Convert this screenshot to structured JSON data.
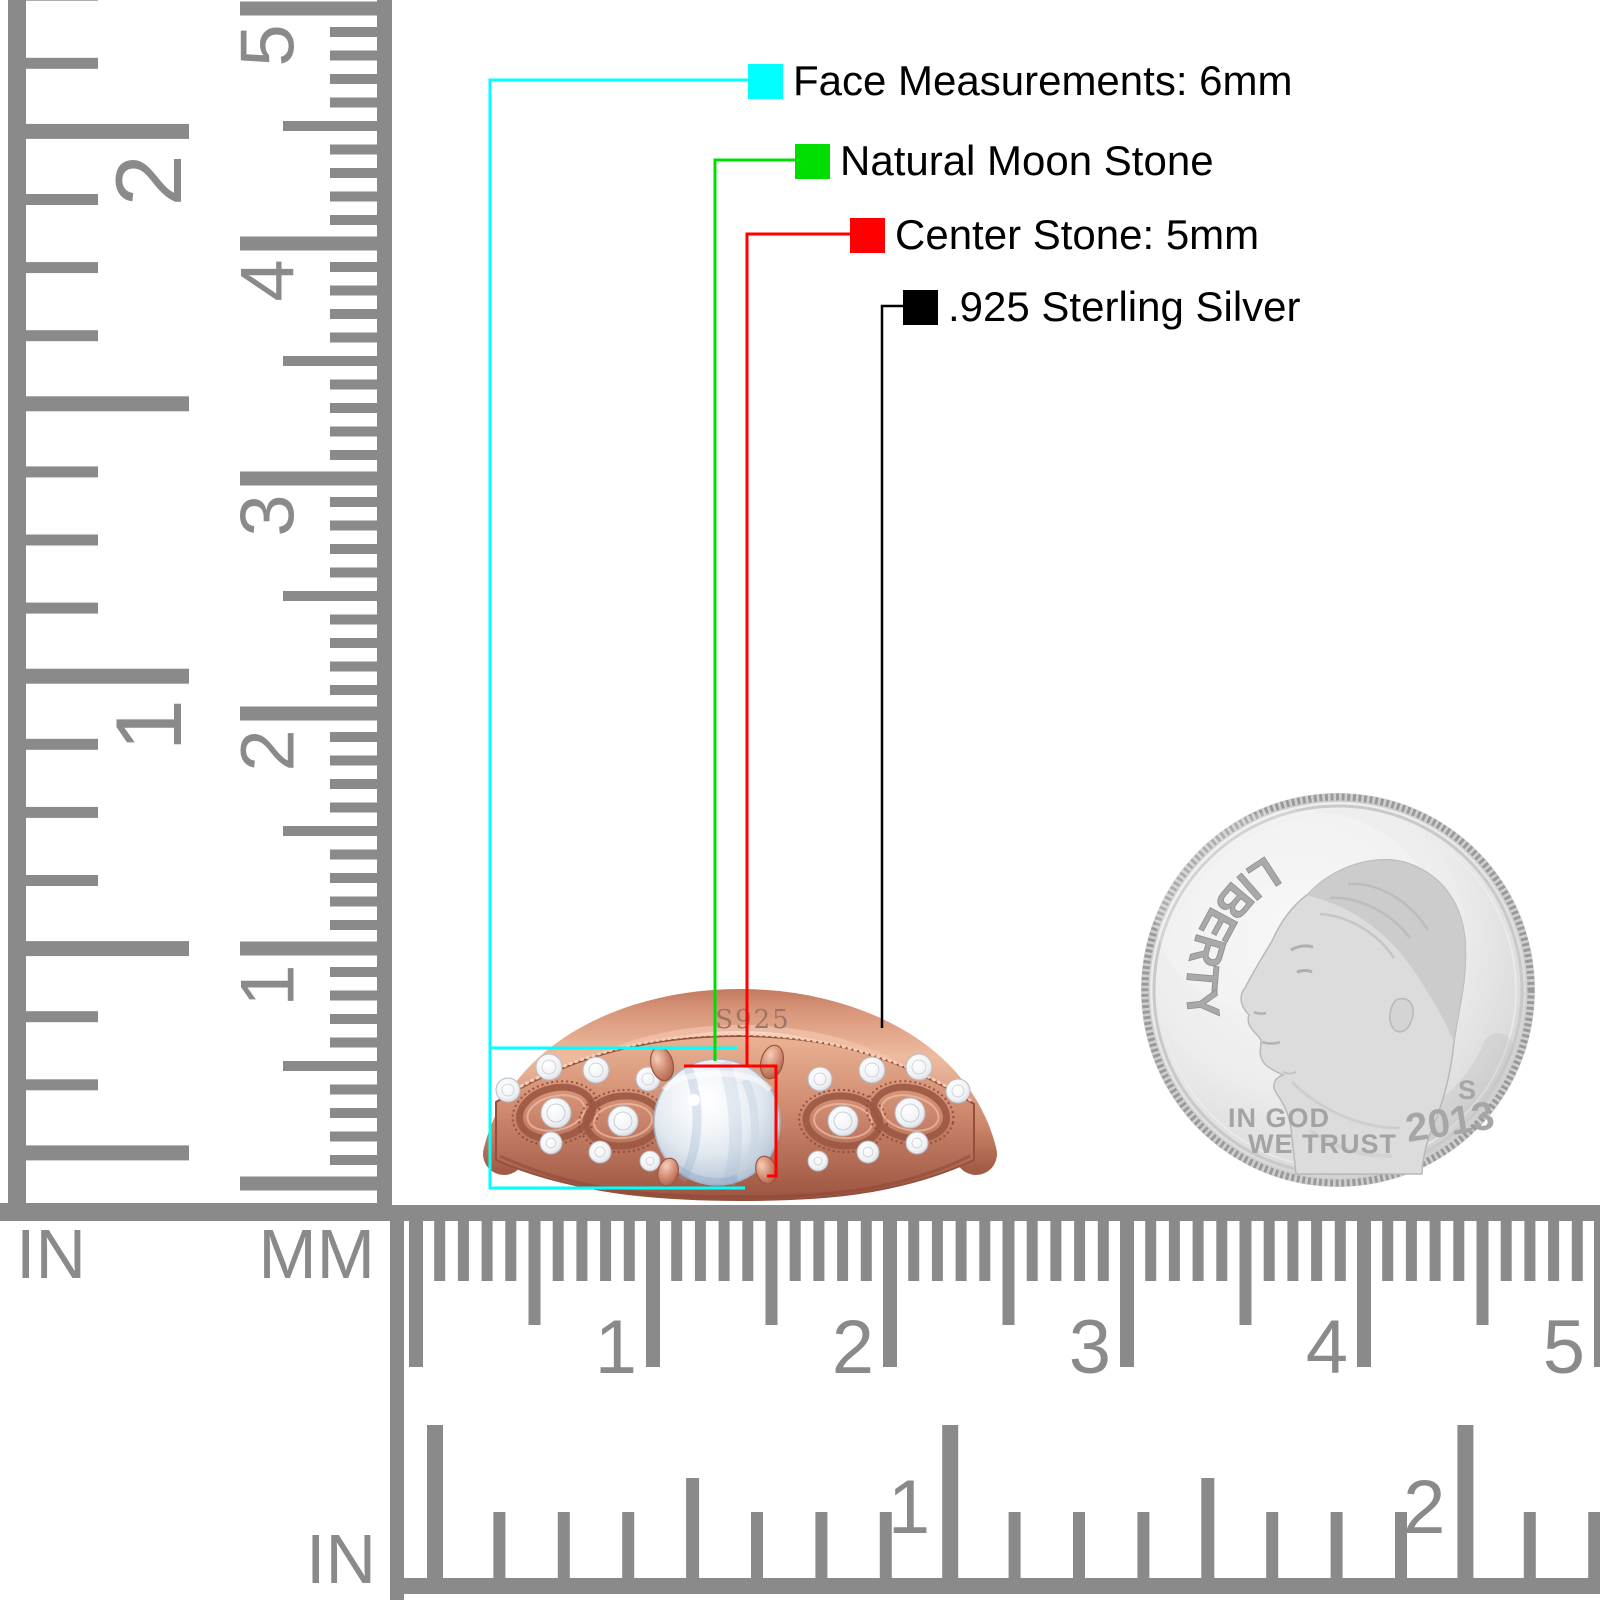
{
  "annotations": {
    "items": [
      {
        "label": "Face Measurements: 6mm",
        "color": "#00ffff"
      },
      {
        "label": "Natural Moon Stone",
        "color": "#00dd00"
      },
      {
        "label": "Center Stone: 5mm",
        "color": "#ff0000"
      },
      {
        "label": ".925 Sterling Silver",
        "color": "#000000"
      }
    ]
  },
  "ring": {
    "engraving": "S925"
  },
  "coin": {
    "legend": "LIBERTY",
    "motto_line1": "IN GOD",
    "motto_line2": "WE TRUST",
    "mint_mark": "S",
    "year": "2013"
  },
  "rulers": {
    "gray": "#8a8a8a",
    "left": {
      "unit_inch": "IN",
      "unit_mm": "MM",
      "inch_labels": [
        "1",
        "2"
      ],
      "cm_labels": [
        "1",
        "2",
        "3",
        "4",
        "5"
      ]
    },
    "bottom": {
      "unit_inch": "IN",
      "cm_labels": [
        "1",
        "2",
        "3",
        "4",
        "5"
      ],
      "inch_labels": [
        "1",
        "2"
      ]
    }
  }
}
